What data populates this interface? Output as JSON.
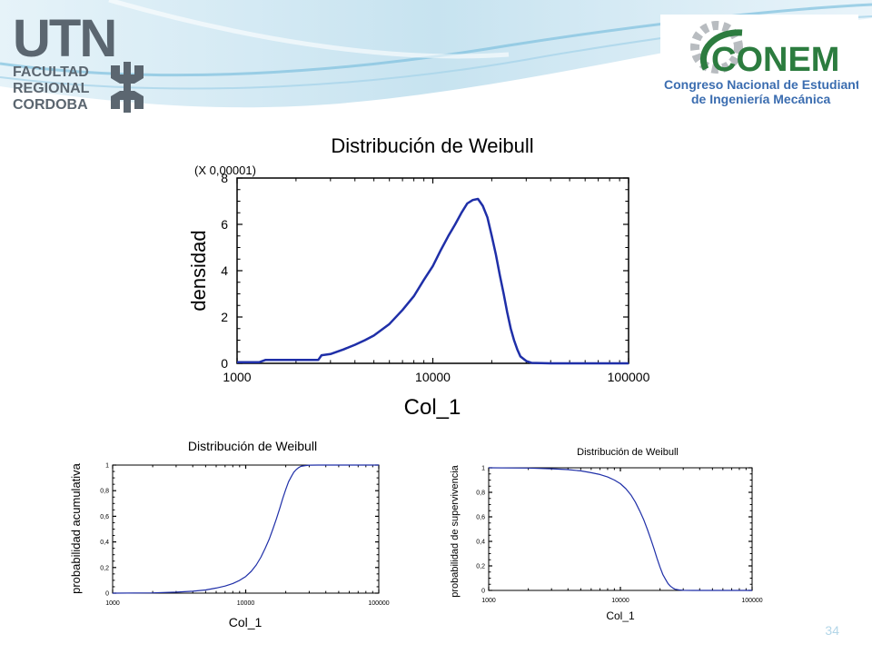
{
  "header": {
    "utn_logo": {
      "letters": "UTN",
      "line1": "FACULTAD",
      "line2": "REGIONAL",
      "line3": "CORDOBA"
    },
    "conem_logo": {
      "name": "CONEM",
      "line1": "Congreso Nacional de Estudiantes",
      "line2": "de Ingeniería Mecánica"
    }
  },
  "slide": {
    "page_number": "34"
  },
  "chart_data": [
    {
      "type": "line",
      "title": "Distribución de Weibull",
      "xlabel": "Col_1",
      "ylabel": "densidad",
      "y_multiplier_label": "(X 0,00001)",
      "x_scale": "log",
      "xlim": [
        1000,
        100000
      ],
      "ylim": [
        0,
        8
      ],
      "x_ticks": [
        "1000",
        "10000",
        "100000"
      ],
      "y_ticks": [
        "0",
        "2",
        "4",
        "6",
        "8"
      ],
      "line_color": "#1f2fa8",
      "x": [
        1000,
        1300,
        1400,
        2000,
        2600,
        2700,
        3000,
        3500,
        4000,
        4500,
        5000,
        6000,
        7000,
        8000,
        9000,
        10000,
        11000,
        12000,
        13000,
        14000,
        15000,
        16000,
        17000,
        18000,
        19000,
        20000,
        21000,
        22000,
        23000,
        24000,
        25000,
        26000,
        27000,
        28000,
        30000,
        32000,
        40000,
        100000
      ],
      "y": [
        0.05,
        0.05,
        0.15,
        0.15,
        0.15,
        0.35,
        0.4,
        0.6,
        0.8,
        1.0,
        1.2,
        1.7,
        2.3,
        2.9,
        3.6,
        4.2,
        4.9,
        5.5,
        6.0,
        6.5,
        6.9,
        7.05,
        7.1,
        6.8,
        6.3,
        5.5,
        4.7,
        3.8,
        3.0,
        2.2,
        1.5,
        1.0,
        0.6,
        0.3,
        0.1,
        0.02,
        0,
        0
      ]
    },
    {
      "type": "line",
      "title": "Distribución de Weibull",
      "xlabel": "Col_1",
      "ylabel": "probabilidad acumulativa",
      "x_scale": "log",
      "xlim": [
        1000,
        100000
      ],
      "ylim": [
        0,
        1
      ],
      "x_ticks": [
        "1000",
        "10000",
        "100000"
      ],
      "y_ticks": [
        "0",
        "0,2",
        "0,4",
        "0,6",
        "0,8",
        "1"
      ],
      "line_color": "#1f2fa8",
      "x": [
        1000,
        2000,
        3000,
        4000,
        5000,
        6000,
        7000,
        8000,
        9000,
        10000,
        11000,
        12000,
        13000,
        14000,
        15000,
        16000,
        17000,
        18000,
        19000,
        20000,
        21000,
        22000,
        23000,
        24000,
        25000,
        26000,
        28000,
        30000,
        35000,
        100000
      ],
      "y": [
        0,
        0.002,
        0.008,
        0.015,
        0.025,
        0.04,
        0.055,
        0.075,
        0.1,
        0.13,
        0.17,
        0.22,
        0.28,
        0.35,
        0.42,
        0.5,
        0.58,
        0.66,
        0.74,
        0.81,
        0.87,
        0.91,
        0.945,
        0.965,
        0.98,
        0.99,
        0.996,
        0.999,
        1,
        1
      ]
    },
    {
      "type": "line",
      "title": "Distribución de Weibull",
      "xlabel": "Col_1",
      "ylabel": "probabilidad de supervivencia",
      "x_scale": "log",
      "xlim": [
        1000,
        100000
      ],
      "ylim": [
        0,
        1
      ],
      "x_ticks": [
        "1000",
        "10000",
        "100000"
      ],
      "y_ticks": [
        "0",
        "0,2",
        "0,4",
        "0,6",
        "0,8",
        "1"
      ],
      "line_color": "#1f2fa8",
      "x": [
        1000,
        2000,
        3000,
        4000,
        5000,
        6000,
        7000,
        8000,
        9000,
        10000,
        11000,
        12000,
        13000,
        14000,
        15000,
        16000,
        17000,
        18000,
        19000,
        20000,
        21000,
        22000,
        23000,
        24000,
        25000,
        26000,
        28000,
        30000,
        35000,
        100000
      ],
      "y": [
        1,
        0.998,
        0.992,
        0.985,
        0.975,
        0.96,
        0.945,
        0.925,
        0.9,
        0.87,
        0.83,
        0.78,
        0.72,
        0.65,
        0.58,
        0.5,
        0.42,
        0.34,
        0.26,
        0.19,
        0.13,
        0.09,
        0.055,
        0.035,
        0.02,
        0.01,
        0.004,
        0.001,
        0,
        0
      ]
    }
  ]
}
